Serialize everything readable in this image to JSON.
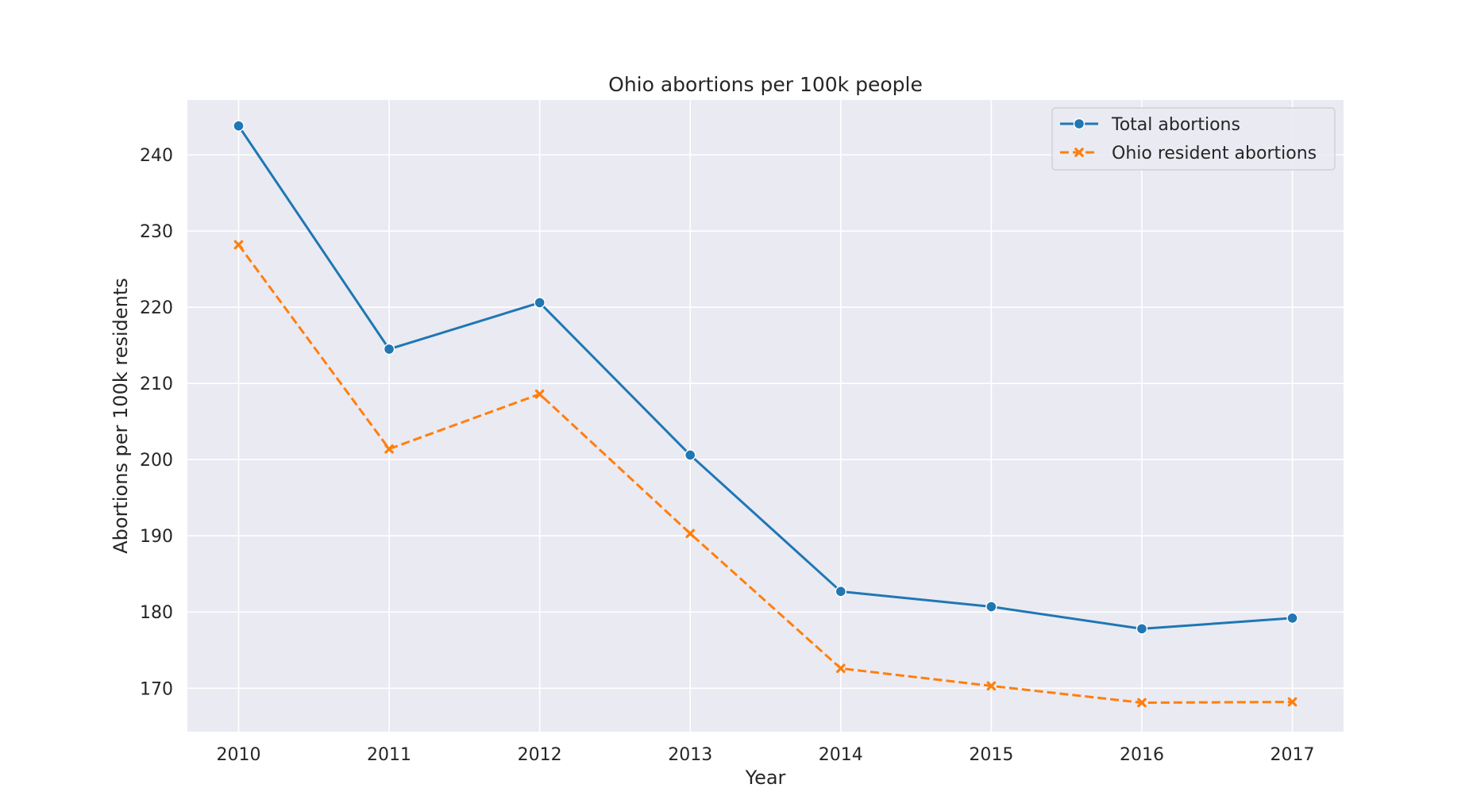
{
  "chart_data": {
    "type": "line",
    "title": "Ohio abortions per 100k people",
    "xlabel": "Year",
    "ylabel": "Abortions per 100k residents",
    "x": [
      2010,
      2011,
      2012,
      2013,
      2014,
      2015,
      2016,
      2017
    ],
    "xticks": [
      "2010",
      "2011",
      "2012",
      "2013",
      "2014",
      "2015",
      "2016",
      "2017"
    ],
    "yticks": [
      170,
      180,
      190,
      200,
      210,
      220,
      230,
      240
    ],
    "ylim": [
      164.3,
      247.2
    ],
    "xlim": [
      2009.66,
      2017.34
    ],
    "grid": true,
    "legend_position": "top-right",
    "background_color": "#eaeaf2",
    "grid_color": "#ffffff",
    "series": [
      {
        "name": "Total abortions",
        "color": "#1f77b4",
        "marker": "circle",
        "line_style": "solid",
        "values": [
          243.8,
          214.5,
          220.6,
          200.6,
          182.7,
          180.7,
          177.8,
          179.2
        ]
      },
      {
        "name": "Ohio resident abortions",
        "color": "#ff7f0e",
        "marker": "x",
        "line_style": "dashed",
        "values": [
          228.2,
          201.4,
          208.6,
          190.3,
          172.6,
          170.3,
          168.1,
          168.2
        ]
      }
    ]
  }
}
